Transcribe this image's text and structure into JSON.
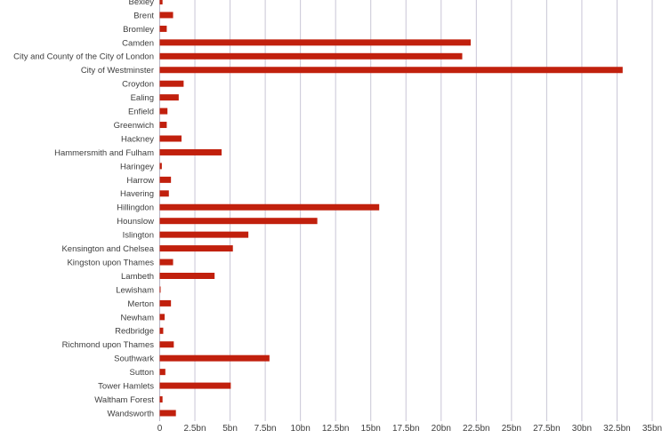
{
  "chart_data": {
    "type": "bar",
    "orientation": "horizontal",
    "title": "",
    "xlabel": "",
    "ylabel": "",
    "grid": true,
    "legend": "none",
    "bar_color": "#c1200d",
    "grid_color": "#c9c6d6",
    "xlim": [
      0,
      35
    ],
    "x_ticks": [
      0,
      2.5,
      5,
      7.5,
      10,
      12.5,
      15,
      17.5,
      20,
      22.5,
      25,
      27.5,
      30,
      32.5,
      35
    ],
    "x_tick_labels": [
      "0",
      "2.5bn",
      "5bn",
      "7.5bn",
      "10bn",
      "12.5bn",
      "15bn",
      "17.5bn",
      "20bn",
      "22.5bn",
      "25bn",
      "27.5bn",
      "30bn",
      "32.5bn",
      "35bn"
    ],
    "categories": [
      "Bexley",
      "Brent",
      "Bromley",
      "Camden",
      "City and County of the City of London",
      "City of Westminster",
      "Croydon",
      "Ealing",
      "Enfield",
      "Greenwich",
      "Hackney",
      "Hammersmith and Fulham",
      "Haringey",
      "Harrow",
      "Havering",
      "Hillingdon",
      "Hounslow",
      "Islington",
      "Kensington and Chelsea",
      "Kingston upon Thames",
      "Lambeth",
      "Lewisham",
      "Merton",
      "Newham",
      "Redbridge",
      "Richmond upon Thames",
      "Southwark",
      "Sutton",
      "Tower Hamlets",
      "Waltham Forest",
      "Wandsworth"
    ],
    "values": [
      0.2,
      0.95,
      0.5,
      22.1,
      21.5,
      32.9,
      1.7,
      1.35,
      0.55,
      0.5,
      1.55,
      4.4,
      0.15,
      0.8,
      0.65,
      15.6,
      11.2,
      6.3,
      5.2,
      0.95,
      3.9,
      0.05,
      0.8,
      0.35,
      0.25,
      1.0,
      7.8,
      0.4,
      5.05,
      0.2,
      1.15
    ]
  }
}
